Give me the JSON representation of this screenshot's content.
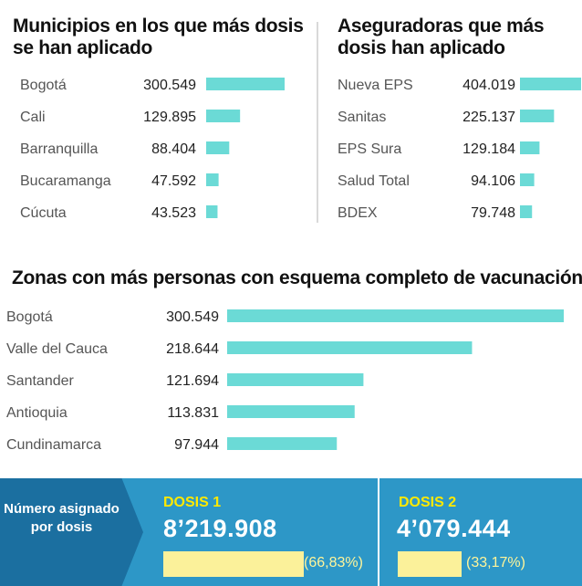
{
  "chart_data": [
    {
      "type": "bar",
      "orientation": "horizontal",
      "title": "Municipios en los que más dosis se han aplicado",
      "categories": [
        "Bogotá",
        "Cali",
        "Barranquilla",
        "Bucaramanga",
        "Cúcuta"
      ],
      "values": [
        300549,
        129895,
        88404,
        47592,
        43523
      ],
      "value_labels": [
        "300.549",
        "129.895",
        "88.404",
        "47.592",
        "43.523"
      ],
      "bar_color": "#6bdad6"
    },
    {
      "type": "bar",
      "orientation": "horizontal",
      "title": "Aseguradoras que más dosis han aplicado",
      "categories": [
        "Nueva EPS",
        "Sanitas",
        "EPS Sura",
        "Salud Total",
        "BDEX"
      ],
      "values": [
        404019,
        225137,
        129184,
        94106,
        79748
      ],
      "value_labels": [
        "404.019",
        "225.137",
        "129.184",
        "94.106",
        "79.748"
      ],
      "bar_color": "#6bdad6"
    },
    {
      "type": "bar",
      "orientation": "horizontal",
      "title": "Zonas con más personas con esquema completo de vacunación",
      "categories": [
        "Bogotá",
        "Valle del Cauca",
        "Santander",
        "Antioquia",
        "Cundinamarca"
      ],
      "values": [
        300549,
        218644,
        121694,
        113831,
        97944
      ],
      "value_labels": [
        "300.549",
        "218.644",
        "121.694",
        "113.831",
        "97.944"
      ],
      "bar_color": "#6bdad6"
    }
  ],
  "footer": {
    "label": "Número asignado por dosis",
    "dose1": {
      "heading": "DOSIS 1",
      "number": "8’219.908",
      "percent_label": "(66,83%)",
      "percent": 66.83
    },
    "dose2": {
      "heading": "DOSIS 2",
      "number": "4’079.444",
      "percent_label": "(33,17%)",
      "percent": 33.17
    },
    "colors": {
      "background": "#2d97c7",
      "label_box": "#1b6fa0",
      "heading": "#ffe900",
      "bar": "#fbf19a"
    }
  }
}
